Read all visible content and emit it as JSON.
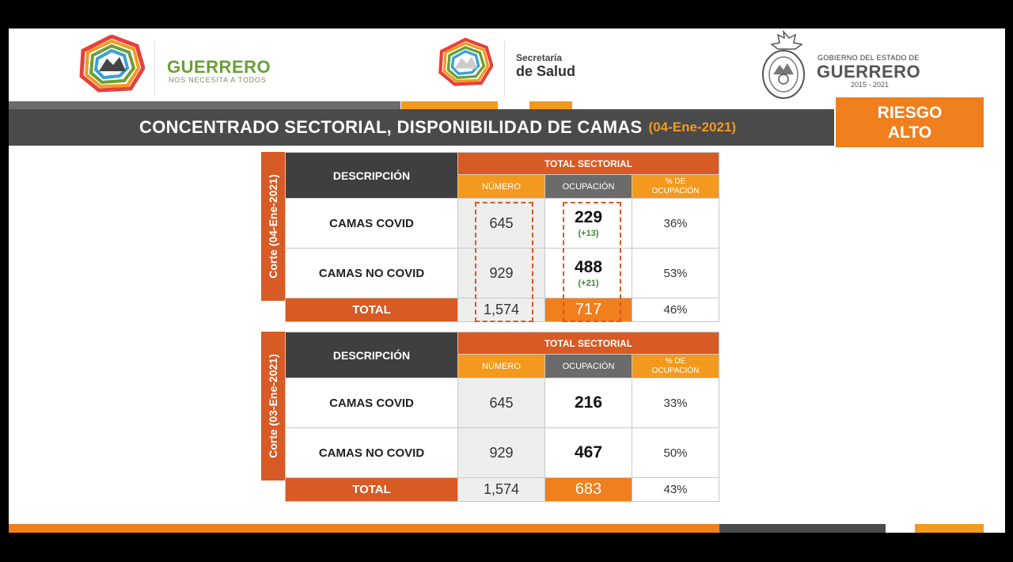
{
  "header": {
    "left_logo": {
      "icon": "guerrero-mountain-logo-icon",
      "title": "GUERRERO",
      "subtitle": "NOS NECESITA A TODOS"
    },
    "center_logo": {
      "icon": "guerrero-mountain-logo-icon",
      "small": "Secretaría",
      "big": "de Salud"
    },
    "right_logo": {
      "icon": "state-coat-of-arms-icon",
      "small": "GOBIERNO DEL ESTADO DE",
      "big": "GUERRERO",
      "years": "2015 - 2021"
    }
  },
  "title": {
    "text": "CONCENTRADO SECTORIAL, DISPONIBILIDAD DE CAMAS",
    "date": "(04-Ene-2021)"
  },
  "risk": {
    "line1": "RIESGO",
    "line2": "ALTO"
  },
  "colors": {
    "orange": "#f07f1d",
    "dark_orange": "#d85a24",
    "gray": "#4a4a4a",
    "green": "#3a8d2f"
  },
  "tables": [
    {
      "corte": "Corte (04-Ene-2021)",
      "headers": {
        "descripcion": "DESCRIPCIÓN",
        "total_sectorial": "TOTAL SECTORIAL",
        "numero": "NÚMERO",
        "ocupacion": "OCUPACIÓN",
        "pct_line1": "% DE",
        "pct_line2": "OCUPACIÓN"
      },
      "rows": [
        {
          "label": "CAMAS COVID",
          "numero": "645",
          "ocupacion": "229",
          "delta": "(+13)",
          "pct": "36%"
        },
        {
          "label": "CAMAS NO COVID",
          "numero": "929",
          "ocupacion": "488",
          "delta": "(+21)",
          "pct": "53%"
        }
      ],
      "total": {
        "label": "TOTAL",
        "numero": "1,574",
        "ocupacion": "717",
        "pct": "46%"
      }
    },
    {
      "corte": "Corte (03-Ene-2021)",
      "headers": {
        "descripcion": "DESCRIPCIÓN",
        "total_sectorial": "TOTAL SECTORIAL",
        "numero": "NÚMERO",
        "ocupacion": "OCUPACIÓN",
        "pct_line1": "% DE",
        "pct_line2": "OCUPACIÓN"
      },
      "rows": [
        {
          "label": "CAMAS COVID",
          "numero": "645",
          "ocupacion": "216",
          "pct": "33%"
        },
        {
          "label": "CAMAS NO COVID",
          "numero": "929",
          "ocupacion": "467",
          "pct": "50%"
        }
      ],
      "total": {
        "label": "TOTAL",
        "numero": "1,574",
        "ocupacion": "683",
        "pct": "43%"
      }
    }
  ]
}
